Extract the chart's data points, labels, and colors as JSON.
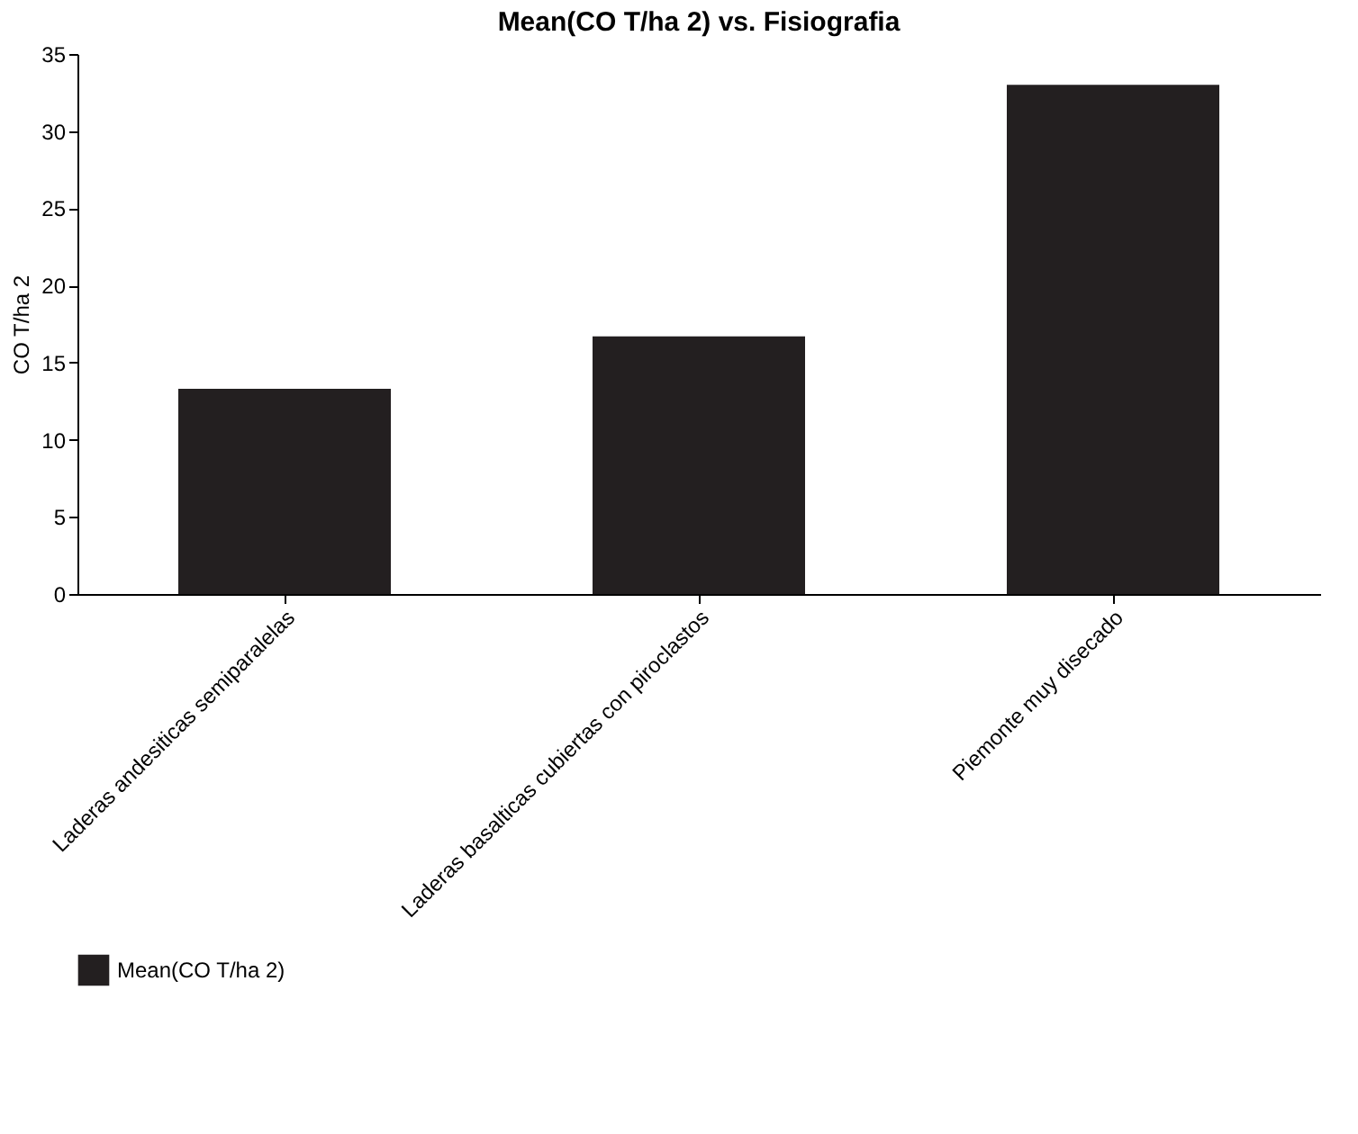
{
  "chart_data": {
    "type": "bar",
    "title": "Mean(CO T/ha 2) vs. Fisiografia",
    "ylabel": "CO T/ha 2",
    "categories": [
      "Laderas andesiticas semiparalelas",
      "Laderas basalticas cubiertas con piroclastos",
      "Piemonte muy disecado"
    ],
    "series": [
      {
        "name": "Mean(CO T/ha 2)",
        "color": "#231f20",
        "values": [
          13.3,
          16.7,
          33.0
        ]
      }
    ],
    "ylim": [
      0,
      35
    ],
    "yticks": [
      0,
      5,
      10,
      15,
      20,
      25,
      30,
      35
    ],
    "grid": false,
    "legend": "bottom left"
  }
}
